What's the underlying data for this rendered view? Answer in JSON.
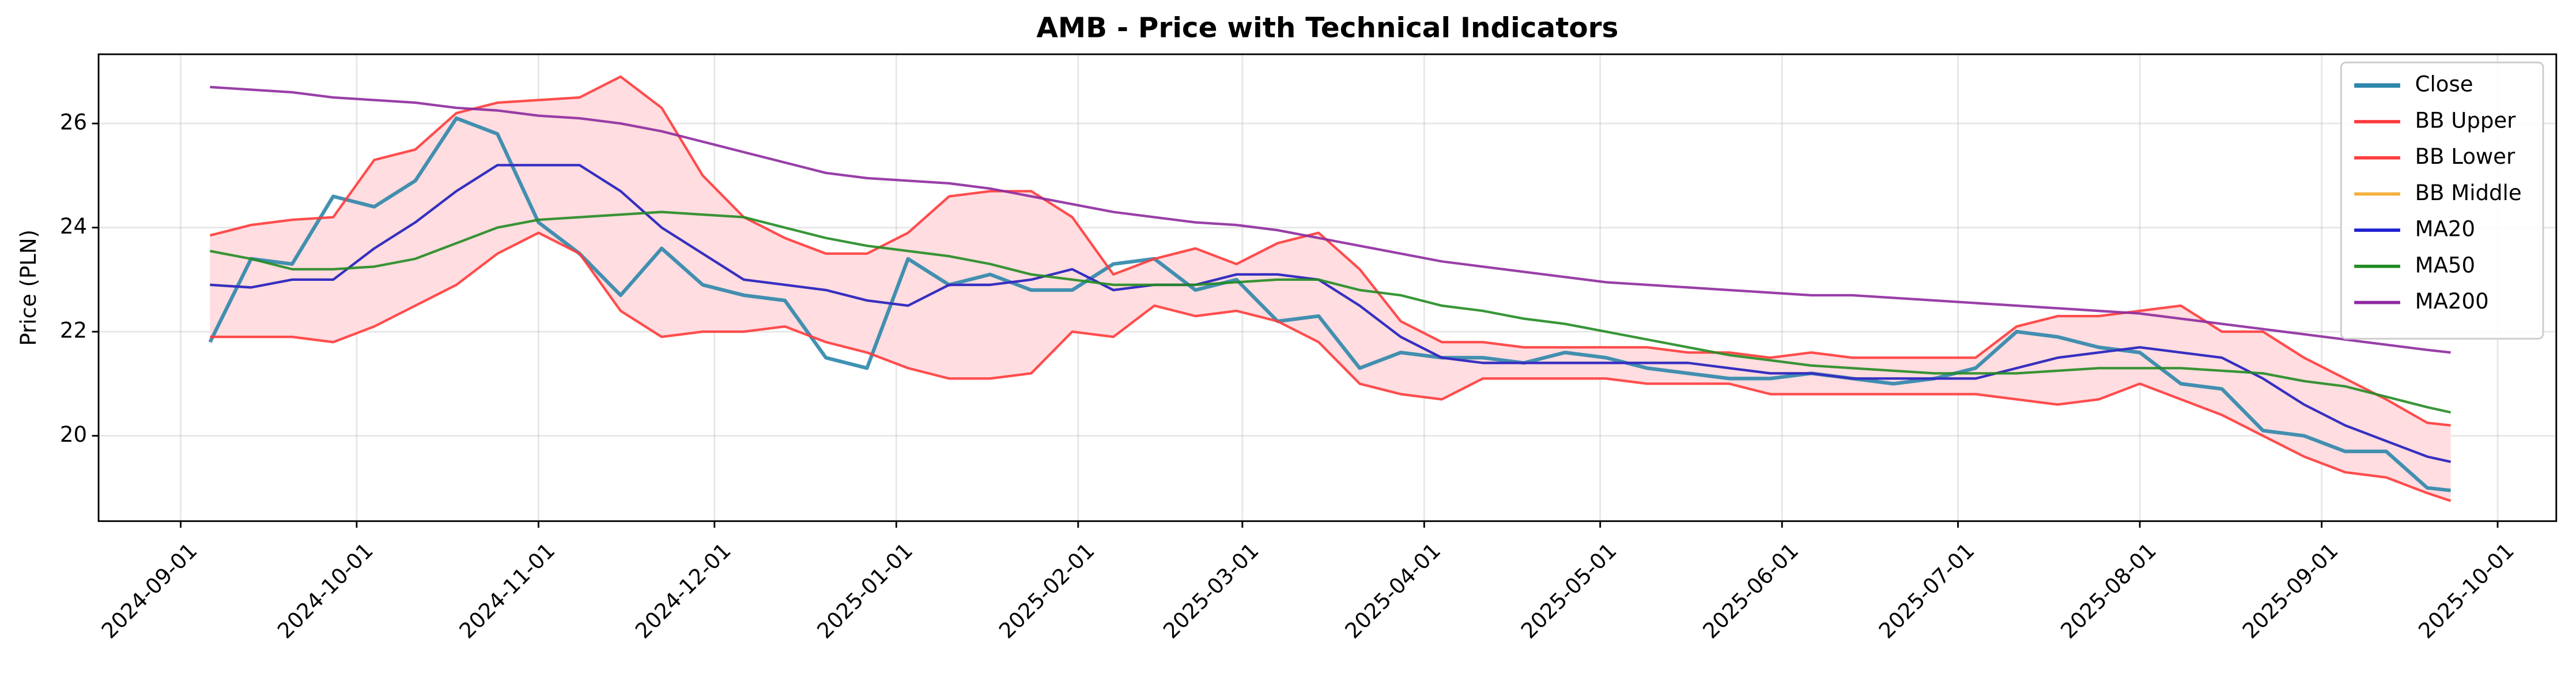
{
  "chart_data": {
    "type": "line",
    "title": "AMB - Price with Technical Indicators",
    "y_label": "Price (PLN)",
    "x": [
      "2024-09-06",
      "2024-09-13",
      "2024-09-20",
      "2024-09-27",
      "2024-10-04",
      "2024-10-11",
      "2024-10-18",
      "2024-10-25",
      "2024-11-01",
      "2024-11-08",
      "2024-11-15",
      "2024-11-22",
      "2024-11-29",
      "2024-12-06",
      "2024-12-13",
      "2024-12-20",
      "2024-12-27",
      "2025-01-03",
      "2025-01-10",
      "2025-01-17",
      "2025-01-24",
      "2025-01-31",
      "2025-02-07",
      "2025-02-14",
      "2025-02-21",
      "2025-02-28",
      "2025-03-07",
      "2025-03-14",
      "2025-03-21",
      "2025-03-28",
      "2025-04-04",
      "2025-04-11",
      "2025-04-18",
      "2025-04-25",
      "2025-05-02",
      "2025-05-09",
      "2025-05-16",
      "2025-05-23",
      "2025-05-30",
      "2025-06-06",
      "2025-06-13",
      "2025-06-20",
      "2025-06-27",
      "2025-07-04",
      "2025-07-11",
      "2025-07-18",
      "2025-07-25",
      "2025-08-01",
      "2025-08-08",
      "2025-08-15",
      "2025-08-22",
      "2025-08-29",
      "2025-09-05",
      "2025-09-12",
      "2025-09-19",
      "2025-09-23"
    ],
    "series": [
      {
        "name": "Close",
        "color": "#2e86ab",
        "width": 2.2,
        "values": [
          21.8,
          23.4,
          23.3,
          24.6,
          24.4,
          24.9,
          26.1,
          25.8,
          24.1,
          23.5,
          22.7,
          23.6,
          22.9,
          22.7,
          22.6,
          21.5,
          21.3,
          23.4,
          22.9,
          23.1,
          22.8,
          22.8,
          23.3,
          23.4,
          22.8,
          23.0,
          22.2,
          22.3,
          21.3,
          21.6,
          21.5,
          21.5,
          21.4,
          21.6,
          21.5,
          21.3,
          21.2,
          21.1,
          21.1,
          21.2,
          21.1,
          21.0,
          21.1,
          21.3,
          22.0,
          21.9,
          21.7,
          21.6,
          21.0,
          20.9,
          20.1,
          20.0,
          19.7,
          19.7,
          19.0,
          18.95
        ]
      },
      {
        "name": "BB Upper",
        "color": "#ff3b3b",
        "width": 1.5,
        "values": [
          23.85,
          24.05,
          24.15,
          24.2,
          25.3,
          25.5,
          26.2,
          26.4,
          26.45,
          26.5,
          26.9,
          26.3,
          25.0,
          24.2,
          23.8,
          23.5,
          23.5,
          23.9,
          24.6,
          24.7,
          24.7,
          24.2,
          23.1,
          23.4,
          23.6,
          23.3,
          23.7,
          23.9,
          23.2,
          22.2,
          21.8,
          21.8,
          21.7,
          21.7,
          21.7,
          21.7,
          21.6,
          21.6,
          21.5,
          21.6,
          21.5,
          21.5,
          21.5,
          21.5,
          22.1,
          22.3,
          22.3,
          22.4,
          22.5,
          22.0,
          22.0,
          21.5,
          21.1,
          20.7,
          20.25,
          20.2
        ]
      },
      {
        "name": "BB Lower",
        "color": "#ff3b3b",
        "width": 1.5,
        "values": [
          21.9,
          21.9,
          21.9,
          21.8,
          22.1,
          22.5,
          22.9,
          23.5,
          23.9,
          23.5,
          22.4,
          21.9,
          22.0,
          22.0,
          22.1,
          21.8,
          21.6,
          21.3,
          21.1,
          21.1,
          21.2,
          22.0,
          21.9,
          22.5,
          22.3,
          22.4,
          22.2,
          21.8,
          21.0,
          20.8,
          20.7,
          21.1,
          21.1,
          21.1,
          21.1,
          21.0,
          21.0,
          21.0,
          20.8,
          20.8,
          20.8,
          20.8,
          20.8,
          20.8,
          20.7,
          20.6,
          20.7,
          21.0,
          20.7,
          20.4,
          20.0,
          19.6,
          19.3,
          19.2,
          18.9,
          18.75
        ]
      },
      {
        "name": "BB Middle",
        "color": "#f5b041",
        "width": 1.5,
        "values": [
          22.9,
          22.85,
          23.0,
          23.0,
          23.6,
          24.1,
          24.7,
          25.2,
          25.2,
          25.2,
          24.7,
          24.0,
          23.5,
          23.0,
          22.9,
          22.8,
          22.6,
          22.5,
          22.9,
          22.9,
          23.0,
          23.2,
          22.8,
          22.9,
          22.9,
          23.1,
          23.1,
          23.0,
          22.5,
          21.9,
          21.5,
          21.4,
          21.4,
          21.4,
          21.4,
          21.4,
          21.4,
          21.3,
          21.2,
          21.2,
          21.1,
          21.1,
          21.1,
          21.1,
          21.3,
          21.5,
          21.6,
          21.7,
          21.6,
          21.5,
          21.1,
          20.6,
          20.2,
          19.9,
          19.6,
          19.5
        ]
      },
      {
        "name": "MA20",
        "color": "#2020d0",
        "width": 1.5,
        "values": [
          22.9,
          22.85,
          23.0,
          23.0,
          23.6,
          24.1,
          24.7,
          25.2,
          25.2,
          25.2,
          24.7,
          24.0,
          23.5,
          23.0,
          22.9,
          22.8,
          22.6,
          22.5,
          22.9,
          22.9,
          23.0,
          23.2,
          22.8,
          22.9,
          22.9,
          23.1,
          23.1,
          23.0,
          22.5,
          21.9,
          21.5,
          21.4,
          21.4,
          21.4,
          21.4,
          21.4,
          21.4,
          21.3,
          21.2,
          21.2,
          21.1,
          21.1,
          21.1,
          21.1,
          21.3,
          21.5,
          21.6,
          21.7,
          21.6,
          21.5,
          21.1,
          20.6,
          20.2,
          19.9,
          19.6,
          19.5
        ]
      },
      {
        "name": "MA50",
        "color": "#228b22",
        "width": 1.5,
        "values": [
          23.55,
          23.4,
          23.2,
          23.2,
          23.25,
          23.4,
          23.7,
          24.0,
          24.15,
          24.2,
          24.25,
          24.3,
          24.25,
          24.2,
          24.0,
          23.8,
          23.65,
          23.55,
          23.45,
          23.3,
          23.1,
          23.0,
          22.9,
          22.9,
          22.9,
          22.95,
          23.0,
          23.0,
          22.8,
          22.7,
          22.5,
          22.4,
          22.25,
          22.15,
          22.0,
          21.85,
          21.7,
          21.55,
          21.45,
          21.35,
          21.3,
          21.25,
          21.2,
          21.2,
          21.2,
          21.25,
          21.3,
          21.3,
          21.3,
          21.25,
          21.2,
          21.05,
          20.95,
          20.75,
          20.55,
          20.45
        ]
      },
      {
        "name": "MA200",
        "color": "#8e2a9e",
        "width": 1.5,
        "values": [
          26.7,
          26.65,
          26.6,
          26.5,
          26.45,
          26.4,
          26.3,
          26.25,
          26.15,
          26.1,
          26.0,
          25.85,
          25.65,
          25.45,
          25.25,
          25.05,
          24.95,
          24.9,
          24.85,
          24.75,
          24.6,
          24.45,
          24.3,
          24.2,
          24.1,
          24.05,
          23.95,
          23.8,
          23.65,
          23.5,
          23.35,
          23.25,
          23.15,
          23.05,
          22.95,
          22.9,
          22.85,
          22.8,
          22.75,
          22.7,
          22.7,
          22.65,
          22.6,
          22.55,
          22.5,
          22.45,
          22.4,
          22.35,
          22.25,
          22.15,
          22.05,
          21.95,
          21.85,
          21.75,
          21.65,
          21.6
        ]
      }
    ],
    "band_color": "#ffdde0",
    "xlim": [
      "2024-08-18",
      "2025-10-11"
    ],
    "xticks": [
      "2024-09-01",
      "2024-10-01",
      "2024-11-01",
      "2024-12-01",
      "2025-01-01",
      "2025-02-01",
      "2025-03-01",
      "2025-04-01",
      "2025-05-01",
      "2025-06-01",
      "2025-07-01",
      "2025-08-01",
      "2025-09-01",
      "2025-10-01"
    ],
    "ylim": [
      18.36,
      27.33
    ],
    "yticks": [
      20,
      22,
      24,
      26
    ],
    "grid": true,
    "legend": "upper right"
  }
}
